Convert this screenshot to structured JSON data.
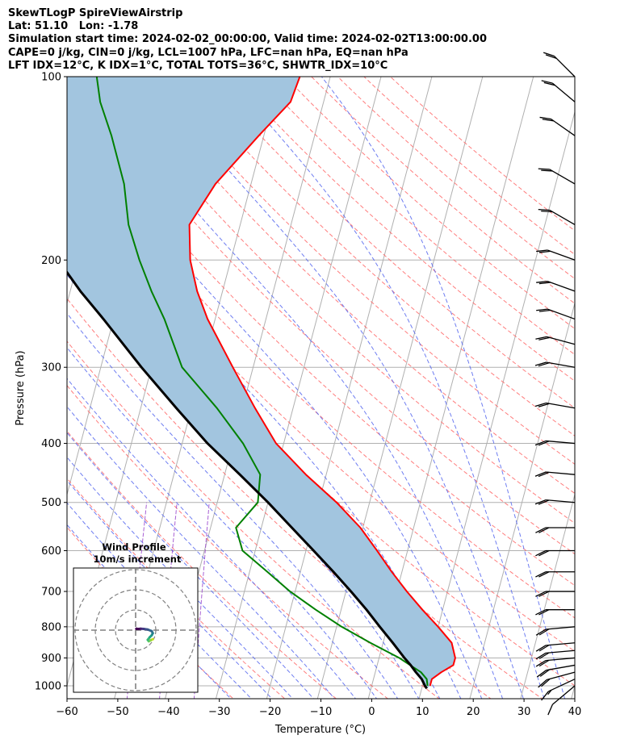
{
  "header": {
    "line1": "SkewTLogP SpireViewAirstrip",
    "line2": "Lat: 51.10   Lon: -1.78",
    "line3": "Simulation start time: 2024-02-02_00:00:00, Valid time: 2024-02-02T13:00:00.00",
    "line4": "CAPE=0 j/kg, CIN=0 j/kg, LCL=1007 hPa, LFC=nan hPa, EQ=nan hPa",
    "line5": "LFT IDX=12°C, K IDX=1°C, TOTAL TOTS=36°C, SHWTR_IDX=10°C"
  },
  "chart_data": {
    "type": "line",
    "subtype": "skew-t log-p",
    "xlabel": "Temperature (°C)",
    "ylabel": "Pressure (hPa)",
    "xlim": [
      -60,
      40
    ],
    "ylim": [
      1050,
      100
    ],
    "yscale": "log",
    "grid": true,
    "x_ticks": [
      -60,
      -50,
      -40,
      -30,
      -20,
      -10,
      0,
      10,
      20,
      30,
      40
    ],
    "x_tick_labels": [
      "−60",
      "−50",
      "−40",
      "−30",
      "−20",
      "−10",
      "0",
      "10",
      "20",
      "30",
      "40"
    ],
    "y_ticks": [
      1000,
      900,
      800,
      700,
      600,
      500,
      400,
      300,
      200,
      100
    ],
    "y_tick_labels": [
      "1000",
      "900",
      "800",
      "700",
      "600",
      "500",
      "400",
      "300",
      "200",
      "100"
    ],
    "colors": {
      "temperature": "#ff0000",
      "dewpoint": "#008000",
      "parcel": "#000000",
      "shade": "#a2c5df",
      "dry_adiabat": "#ff6666",
      "moist_adiabat": "#5566ee",
      "mixing_ratio": "#9944cc",
      "isotherm": "#b0b0b0"
    },
    "series": [
      {
        "key": "temperature",
        "pressure": [
          1000,
          975,
          950,
          925,
          900,
          850,
          800,
          750,
          700,
          650,
          600,
          550,
          500,
          450,
          400,
          350,
          300,
          250,
          225,
          200,
          175,
          150,
          125,
          110,
          100
        ],
        "values": [
          11.5,
          11.5,
          13.0,
          15.0,
          15.0,
          13.5,
          10.0,
          6.0,
          2.0,
          -2.0,
          -6.0,
          -10.5,
          -16.5,
          -24.0,
          -31.5,
          -37.5,
          -44.0,
          -51.5,
          -55.0,
          -58.0,
          -60.0,
          -57.0,
          -51.0,
          -46.5,
          -46.0
        ]
      },
      {
        "key": "dewpoint",
        "pressure": [
          1000,
          975,
          950,
          925,
          900,
          850,
          800,
          750,
          700,
          650,
          600,
          550,
          500,
          450,
          400,
          350,
          300,
          250,
          225,
          200,
          175,
          150,
          125,
          110,
          100
        ],
        "values": [
          11.0,
          10.5,
          9.0,
          6.5,
          4.0,
          -2.5,
          -9.0,
          -15.0,
          -21.0,
          -26.5,
          -32.5,
          -35.0,
          -32.0,
          -33.0,
          -38.0,
          -45.0,
          -54.0,
          -60.0,
          -64.0,
          -68.0,
          -72.0,
          -75.0,
          -80.0,
          -84.0,
          -86.0
        ]
      },
      {
        "key": "parcel",
        "pressure": [
          1010,
          1000,
          975,
          950,
          925,
          900,
          850,
          800,
          750,
          700,
          650,
          600,
          550,
          500,
          450,
          400,
          350,
          300,
          250,
          225,
          200,
          175,
          150,
          125,
          110,
          100
        ],
        "values": [
          11.0,
          10.5,
          9.5,
          8.0,
          6.6,
          5.0,
          1.9,
          -1.5,
          -5.0,
          -9.0,
          -13.5,
          -18.5,
          -24.0,
          -30.0,
          -37.0,
          -45.0,
          -53.0,
          -62.0,
          -72.0,
          -78.0,
          -84.0,
          -91.0,
          -99.0,
          -109.0,
          -116.0,
          -121.0
        ]
      }
    ],
    "wind_barbs": {
      "pressure": [
        1000,
        975,
        950,
        925,
        900,
        875,
        850,
        800,
        750,
        700,
        650,
        600,
        550,
        500,
        450,
        400,
        350,
        300,
        275,
        250,
        225,
        200,
        175,
        150,
        125,
        110,
        100
      ],
      "speed_kt": [
        10,
        15,
        20,
        20,
        20,
        20,
        20,
        20,
        20,
        20,
        20,
        20,
        20,
        20,
        20,
        20,
        20,
        20,
        20,
        20,
        20,
        20,
        20,
        20,
        20,
        20,
        20
      ],
      "direction_deg": [
        230,
        245,
        255,
        260,
        265,
        265,
        265,
        265,
        270,
        270,
        270,
        270,
        270,
        275,
        275,
        275,
        280,
        280,
        285,
        290,
        290,
        290,
        300,
        300,
        305,
        310,
        315
      ]
    },
    "hodograph": {
      "title": "Wind Profile",
      "subtitle": "10m/s increment",
      "ring_step": 10,
      "ring_count": 3,
      "u": [
        8.5,
        7.5,
        6.5,
        6.0,
        7.0,
        8.0,
        8.5,
        8.0,
        6.0,
        4.0,
        2.5,
        1.5,
        0.8,
        0.5,
        0.3
      ],
      "v": [
        -4.5,
        -5.0,
        -5.5,
        -4.8,
        -3.5,
        -2.5,
        -1.5,
        -0.5,
        0.3,
        0.6,
        0.7,
        0.6,
        0.6,
        0.7,
        0.6
      ],
      "colors": [
        "#c8e020",
        "#90d743",
        "#5ec962",
        "#35b779",
        "#20a486",
        "#21918c",
        "#287c8e",
        "#31688e",
        "#3b528b",
        "#443983",
        "#481f70",
        "#440154",
        "#440154",
        "#440154",
        "#440154"
      ]
    }
  }
}
